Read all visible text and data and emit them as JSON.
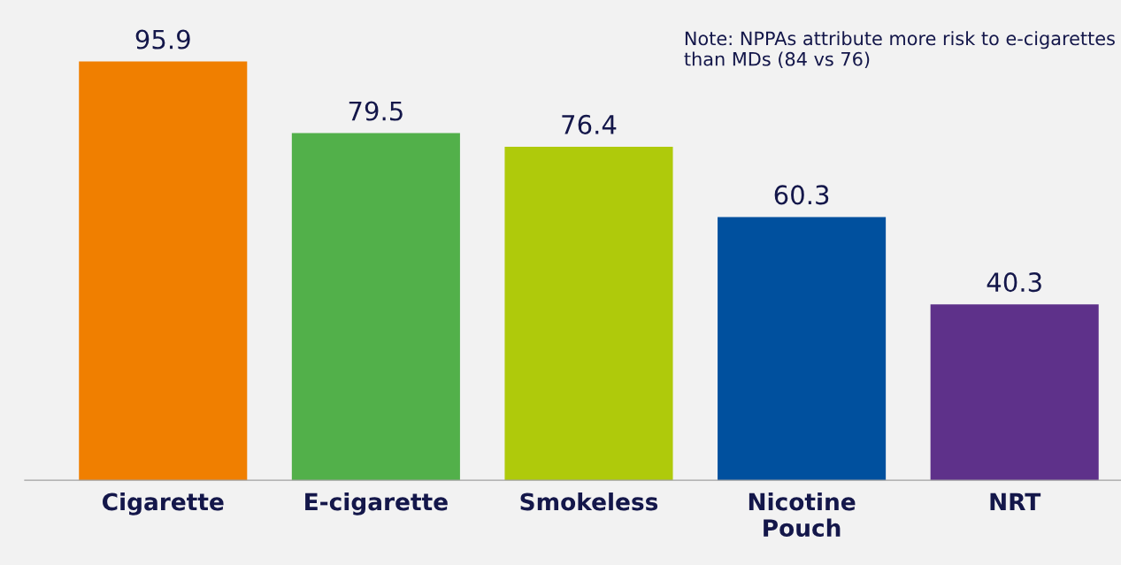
{
  "chart_data": {
    "type": "bar",
    "categories": [
      "Cigarette",
      "E-cigarette",
      "Smokeless",
      "Nicotine Pouch",
      "NRT"
    ],
    "values": [
      95.9,
      79.5,
      76.4,
      60.3,
      40.3
    ],
    "colors": [
      "#f07f00",
      "#52b04a",
      "#afca0b",
      "#00509e",
      "#5e318a"
    ],
    "data_labels": true,
    "annotations": [
      "Note: NPPAs attribute more risk to e-cigarettes than MDs (84 vs 76)"
    ],
    "grid": false,
    "legend": false
  }
}
